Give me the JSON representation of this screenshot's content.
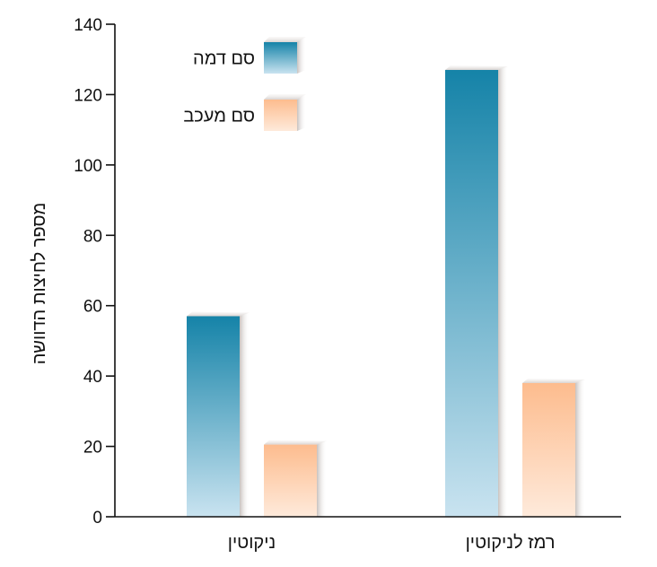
{
  "chart_data": {
    "type": "bar",
    "categories": [
      "ניקוטין",
      "רמז לניקוטין"
    ],
    "series": [
      {
        "name": "סם דמה",
        "values": [
          57,
          127
        ]
      },
      {
        "name": "סם מעכב",
        "values": [
          20.5,
          38
        ]
      }
    ],
    "ylabel": "מספר לחיצות הדוושה",
    "xlabel": "",
    "ylim": [
      0,
      140
    ],
    "yticks": [
      0,
      20,
      40,
      60,
      80,
      100,
      120,
      140
    ],
    "grid": false,
    "legend_position": "top-left",
    "colors": {
      "series_0_top": "#1583a8",
      "series_0_bottom": "#c9e3f0",
      "series_1_top": "#fdbc8e",
      "series_1_bottom": "#feeadb"
    }
  }
}
